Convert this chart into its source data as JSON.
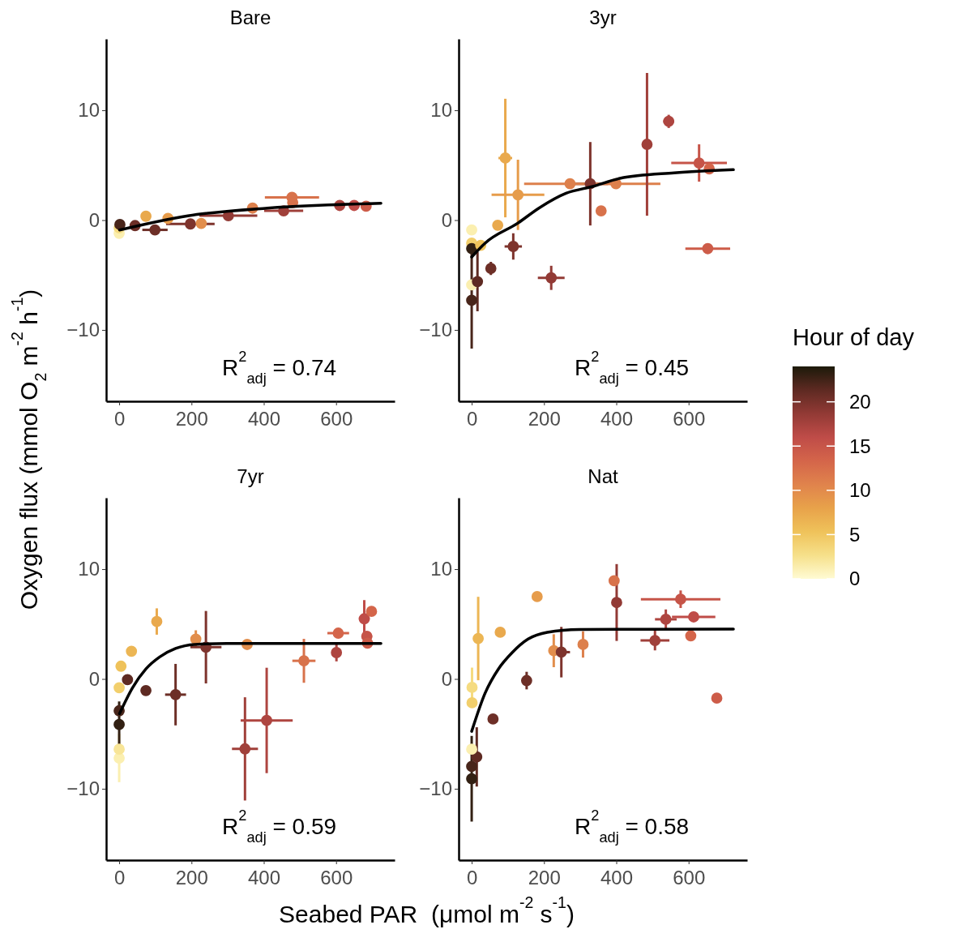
{
  "chart_data": [
    {
      "type": "scatter",
      "title": "Bare",
      "ylabel": "Oxygen flux (mmol O$_{2}$ m$^{-2}$ h$^{-1}$)",
      "xlim": [
        -36,
        762
      ],
      "ylim": [
        -16.5,
        16.5
      ],
      "xticks": [
        0,
        200,
        400,
        600
      ],
      "yticks": [
        -10,
        0,
        10
      ],
      "annotations": [
        "R$^{2}$$_{adj}$ = 0.74"
      ],
      "series": [
        {
          "type": "scatter",
          "marker": "circle",
          "x": [
            0,
            0,
            2,
            44,
            74,
            99,
            135,
            197,
            227,
            302,
            369,
            455,
            478,
            480,
            610,
            650,
            683
          ],
          "values": [
            -1.2,
            -0.7,
            -0.4,
            -0.5,
            0.35,
            -0.89,
            0.15,
            -0.35,
            -0.3,
            0.4,
            1.09,
            0.84,
            2.07,
            1.6,
            1.33,
            1.33,
            1.26
          ],
          "colors": [
            "#fbefb0",
            "#f5db80",
            "#48251a",
            "#6d2f27",
            "#e9a94d",
            "#6d2f27",
            "#e69c4b",
            "#7e342d",
            "#e28e4c",
            "#923a35",
            "#dd804c",
            "#a0403a",
            "#d8724b",
            "#d8724b",
            "#ae4540",
            "#bf4c48",
            "#cd5c49"
          ],
          "errors": [
            null,
            null,
            null,
            null,
            null,
            null,
            null,
            null,
            null,
            null,
            null,
            null,
            null,
            null,
            null,
            0.4,
            null
          ],
          "xerrors": [
            null,
            null,
            null,
            null,
            null,
            35,
            null,
            67,
            null,
            80,
            null,
            54,
            75,
            null,
            null,
            null,
            null
          ]
        },
        {
          "type": "line",
          "color": "#000000",
          "x": [
            1,
            190,
            410,
            724
          ],
          "values": [
            -0.9,
            0.39,
            1.09,
            1.53
          ]
        }
      ]
    },
    {
      "type": "scatter",
      "title": "3yr",
      "xlim": [
        -36,
        762
      ],
      "ylim": [
        -16.5,
        16.5
      ],
      "xticks": [
        0,
        200,
        400,
        600
      ],
      "yticks": [
        -10,
        0,
        10
      ],
      "clim": [
        0,
        24
      ],
      "cticks": [
        0,
        5,
        10,
        15,
        20
      ],
      "clabel": "Hour of day",
      "annotations": [
        "R$^{2}$$_{adj}$ = 0.45"
      ],
      "series": [
        {
          "type": "scatter",
          "marker": "circle",
          "x": [
            0,
            0,
            0,
            0,
            0,
            16,
            25,
            53,
            72,
            93,
            128,
            115,
            220,
            272,
            328,
            358,
            399,
            485,
            545,
            629,
            657,
            653
          ],
          "values": [
            -0.9,
            -2.1,
            -2.6,
            -7.3,
            -5.9,
            -5.6,
            -2.3,
            -4.4,
            -0.47,
            5.65,
            2.3,
            -2.4,
            -5.26,
            3.31,
            3.31,
            0.84,
            3.31,
            6.9,
            8.99,
            5.2,
            4.67,
            -2.6
          ],
          "colors": [
            "#fbefb0",
            "#f2cf6c",
            "#322013",
            "#48251a",
            "#fbefb0",
            "#5e2a22",
            "#efc25a",
            "#6d2f27",
            "#e9a94d",
            "#e9a94d",
            "#e69c4b",
            "#7e342d",
            "#923a35",
            "#dd804c",
            "#7e342d",
            "#d8724b",
            "#dd804c",
            "#a0403a",
            "#ae4540",
            "#c65448",
            "#d4654a",
            "#cd5c49"
          ],
          "errors": [
            null,
            null,
            null,
            4.4,
            null,
            2.7,
            null,
            0.6,
            null,
            5.4,
            3.2,
            1.2,
            1.1,
            null,
            3.8,
            null,
            null,
            6.5,
            0.6,
            1.7,
            null,
            null
          ],
          "xerrors": [
            null,
            null,
            null,
            null,
            null,
            null,
            null,
            null,
            null,
            19,
            73,
            24,
            37,
            127,
            49,
            null,
            123,
            null,
            15,
            77,
            null,
            62
          ]
        },
        {
          "type": "line",
          "color": "#000000",
          "x": [
            0,
            37,
            128,
            186,
            261,
            335,
            410,
            560,
            724
          ],
          "values": [
            -3.36,
            -2.1,
            -0.27,
            1.09,
            2.44,
            3.06,
            3.8,
            4.3,
            4.59
          ]
        }
      ]
    },
    {
      "type": "scatter",
      "title": "7yr",
      "xlabel": "Seabed PAR  (μmol m$^{-2}$ s$^{-1}$)",
      "xlim": [
        -36,
        762
      ],
      "ylim": [
        -16.5,
        16.5
      ],
      "xticks": [
        0,
        200,
        400,
        600
      ],
      "yticks": [
        -10,
        0,
        10
      ],
      "annotations": [
        "R$^{2}$$_{adj}$ = 0.59"
      ],
      "series": [
        {
          "type": "scatter",
          "marker": "circle",
          "x": [
            0,
            0,
            0,
            0,
            0,
            5,
            23,
            34,
            74,
            104,
            156,
            212,
            240,
            354,
            348,
            408,
            511,
            606,
            601,
            678,
            698,
            685,
            687
          ],
          "values": [
            -7.2,
            -6.4,
            -4.15,
            -2.9,
            -0.8,
            1.16,
            -0.07,
            2.52,
            -1.06,
            5.23,
            -1.43,
            3.63,
            2.89,
            3.14,
            -6.37,
            -3.78,
            1.65,
            4.17,
            2.4,
            5.48,
            6.15,
            3.88,
            3.26
          ],
          "colors": [
            "#fbefb0",
            "#f8e597",
            "#322013",
            "#48251a",
            "#f2cf6c",
            "#efc25a",
            "#5e2a22",
            "#ecb654",
            "#5e2a22",
            "#e9a94d",
            "#6d2f27",
            "#e28e4c",
            "#7e342d",
            "#e28e4c",
            "#a0403a",
            "#ae4540",
            "#d8724b",
            "#d4654a",
            "#ae4540",
            "#bf4c48",
            "#d4654a",
            "#c65448",
            "#cd5c49"
          ],
          "errors": [
            2.2,
            null,
            2.1,
            null,
            null,
            null,
            null,
            null,
            null,
            1.2,
            2.8,
            0.8,
            3.3,
            null,
            4.7,
            4.8,
            2.0,
            null,
            0.8,
            1.7,
            null,
            null,
            null
          ],
          "xerrors": [
            null,
            null,
            null,
            null,
            null,
            null,
            null,
            null,
            null,
            null,
            29,
            null,
            43,
            null,
            36,
            72,
            32,
            30,
            null,
            15,
            null,
            15,
            null
          ]
        },
        {
          "type": "line",
          "color": "#000000",
          "x": [
            1,
            37,
            74,
            112,
            156,
            209,
            298,
            724
          ],
          "values": [
            -3.16,
            -0.8,
            0.91,
            2.0,
            2.77,
            3.14,
            3.23,
            3.23
          ]
        }
      ]
    },
    {
      "type": "scatter",
      "title": "Nat",
      "xlim": [
        -36,
        762
      ],
      "ylim": [
        -16.5,
        16.5
      ],
      "xticks": [
        0,
        200,
        400,
        600
      ],
      "yticks": [
        -10,
        0,
        10
      ],
      "annotations": [
        "R$^{2}$$_{adj}$ = 0.58"
      ],
      "series": [
        {
          "type": "scatter",
          "marker": "circle",
          "x": [
            0,
            0,
            14,
            0,
            1,
            1,
            18,
            59,
            79,
            181,
            152,
            227,
            248,
            308,
            394,
            401,
            507,
            537,
            578,
            614,
            606,
            678
          ],
          "values": [
            -9.09,
            -7.97,
            -7.1,
            -6.4,
            -2.17,
            -0.77,
            3.68,
            -3.65,
            4.25,
            7.5,
            -0.15,
            2.57,
            2.44,
            3.14,
            8.94,
            6.96,
            3.5,
            5.43,
            7.26,
            5.65,
            3.93,
            -1.75
          ],
          "colors": [
            "#322013",
            "#48251a",
            "#5e2a22",
            "#fbefb0",
            "#f2cf6c",
            "#f5db80",
            "#ecb654",
            "#6d2f27",
            "#e9a94d",
            "#e69c4b",
            "#6d2f27",
            "#e28e4c",
            "#7e342d",
            "#dd804c",
            "#d8724b",
            "#923a35",
            "#a0403a",
            "#ae4540",
            "#c65448",
            "#bf4c48",
            "#d4654a",
            "#cd5c49"
          ],
          "errors": [
            3.9,
            null,
            2.7,
            null,
            null,
            1.8,
            3.8,
            null,
            null,
            null,
            0.8,
            1.5,
            2.3,
            1.2,
            null,
            3.5,
            0.9,
            0.9,
            0.8,
            null,
            null,
            null
          ],
          "xerrors": [
            null,
            null,
            null,
            null,
            null,
            null,
            null,
            null,
            null,
            null,
            null,
            null,
            24,
            null,
            null,
            null,
            40,
            30,
            110,
            60,
            null,
            null
          ]
        },
        {
          "type": "line",
          "color": "#000000",
          "x": [
            0,
            37,
            74,
            112,
            156,
            209,
            298,
            724
          ],
          "values": [
            -4.77,
            -1.3,
            0.91,
            2.4,
            3.63,
            4.25,
            4.5,
            4.54
          ]
        }
      ]
    }
  ]
}
